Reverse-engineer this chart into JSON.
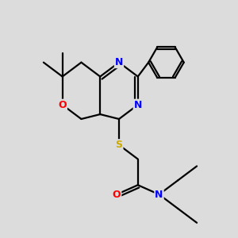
{
  "background_color": "#dcdcdc",
  "atom_colors": {
    "N": "#0000ff",
    "O": "#ff0000",
    "S": "#ccaa00"
  },
  "line_color": "#000000",
  "line_width": 1.6,
  "figsize": [
    3.0,
    3.0
  ],
  "dpi": 100
}
